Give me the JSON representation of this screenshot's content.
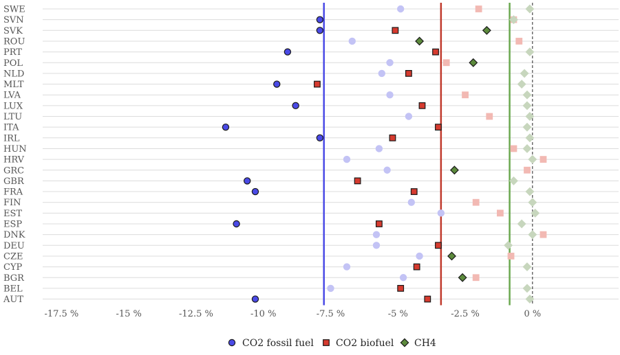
{
  "chart_data": {
    "type": "scatter",
    "orientation": "horizontal-dot-plot",
    "title": "",
    "xlabel": "",
    "ylabel": "",
    "xlim": [
      -18.2,
      3.2
    ],
    "x_ticks": [
      -17.5,
      -15,
      -12.5,
      -10,
      -7.5,
      -5,
      -2.5,
      0
    ],
    "x_tick_labels": [
      "-17.5 %",
      "-15 %",
      "-12.5 %",
      "-10 %",
      "-7.5 %",
      "-5 %",
      "-2.5 %",
      "0 %"
    ],
    "categories": [
      "SWE",
      "SVN",
      "SVK",
      "ROU",
      "PRT",
      "POL",
      "NLD",
      "MLT",
      "LVA",
      "LUX",
      "LTU",
      "ITA",
      "IRL",
      "HUN",
      "HRV",
      "GRC",
      "GBR",
      "FRA",
      "FIN",
      "EST",
      "ESP",
      "DNK",
      "DEU",
      "CZE",
      "CYP",
      "BGR",
      "BEL",
      "AUT"
    ],
    "grid": true,
    "legend_position": "bottom",
    "series": [
      {
        "name": "CO2 fossil fuel",
        "marker": "circle",
        "color": "#4a4ae6",
        "faded_color": "#c3c3f5",
        "values": [
          -4.9,
          -7.9,
          -7.9,
          -6.7,
          -9.1,
          -5.3,
          -5.6,
          -9.5,
          -5.3,
          -8.8,
          -4.6,
          -11.4,
          -7.9,
          -5.7,
          -6.9,
          -5.4,
          -10.6,
          -10.3,
          -4.5,
          -3.4,
          -11.0,
          -5.8,
          -5.8,
          -4.2,
          -6.9,
          -4.8,
          -7.5,
          -10.3
        ],
        "highlighted": [
          false,
          true,
          true,
          false,
          true,
          false,
          false,
          true,
          false,
          true,
          false,
          true,
          true,
          false,
          false,
          false,
          true,
          true,
          false,
          false,
          true,
          false,
          false,
          false,
          false,
          false,
          false,
          true
        ]
      },
      {
        "name": "CO2 biofuel",
        "marker": "square",
        "color": "#d63b2f",
        "faded_color": "#f2b9b3",
        "values": [
          -2.0,
          -0.7,
          -5.1,
          -0.5,
          -3.6,
          -3.2,
          -4.6,
          -8.0,
          -2.5,
          -4.1,
          -1.6,
          -3.5,
          -5.2,
          -0.7,
          0.4,
          -0.2,
          -6.5,
          -4.4,
          -2.1,
          -1.2,
          -5.7,
          0.4,
          -3.5,
          -0.8,
          -4.3,
          -2.1,
          -4.9,
          -3.9
        ],
        "highlighted": [
          false,
          false,
          true,
          false,
          true,
          false,
          true,
          true,
          false,
          true,
          false,
          true,
          true,
          false,
          false,
          false,
          true,
          true,
          false,
          false,
          true,
          false,
          true,
          false,
          true,
          false,
          true,
          true
        ]
      },
      {
        "name": "CH4",
        "marker": "diamond",
        "color": "#5c8a3c",
        "faded_color": "#c7d6bd",
        "values": [
          -0.1,
          -0.7,
          -1.7,
          -4.2,
          -0.1,
          -2.2,
          -0.3,
          -0.4,
          -0.2,
          -0.2,
          -0.1,
          -0.2,
          -0.1,
          -0.2,
          0.0,
          -2.9,
          -0.7,
          -0.1,
          0.0,
          0.1,
          -0.4,
          0.0,
          -0.9,
          -3.0,
          -0.2,
          -2.6,
          -0.2,
          -0.1
        ],
        "highlighted": [
          false,
          false,
          true,
          true,
          false,
          true,
          false,
          false,
          false,
          false,
          false,
          false,
          false,
          false,
          false,
          true,
          false,
          false,
          false,
          false,
          false,
          false,
          false,
          true,
          false,
          true,
          false,
          false
        ]
      }
    ],
    "reference_lines": [
      {
        "series": "CO2 fossil fuel",
        "x": -7.75,
        "color": "#4a4ae6"
      },
      {
        "series": "CO2 biofuel",
        "x": -3.4,
        "color": "#c0392b"
      },
      {
        "series": "CH4",
        "x": -0.85,
        "color": "#6aa84f"
      },
      {
        "series": "zero",
        "x": 0,
        "color": "#222222",
        "dashed": true
      }
    ]
  }
}
